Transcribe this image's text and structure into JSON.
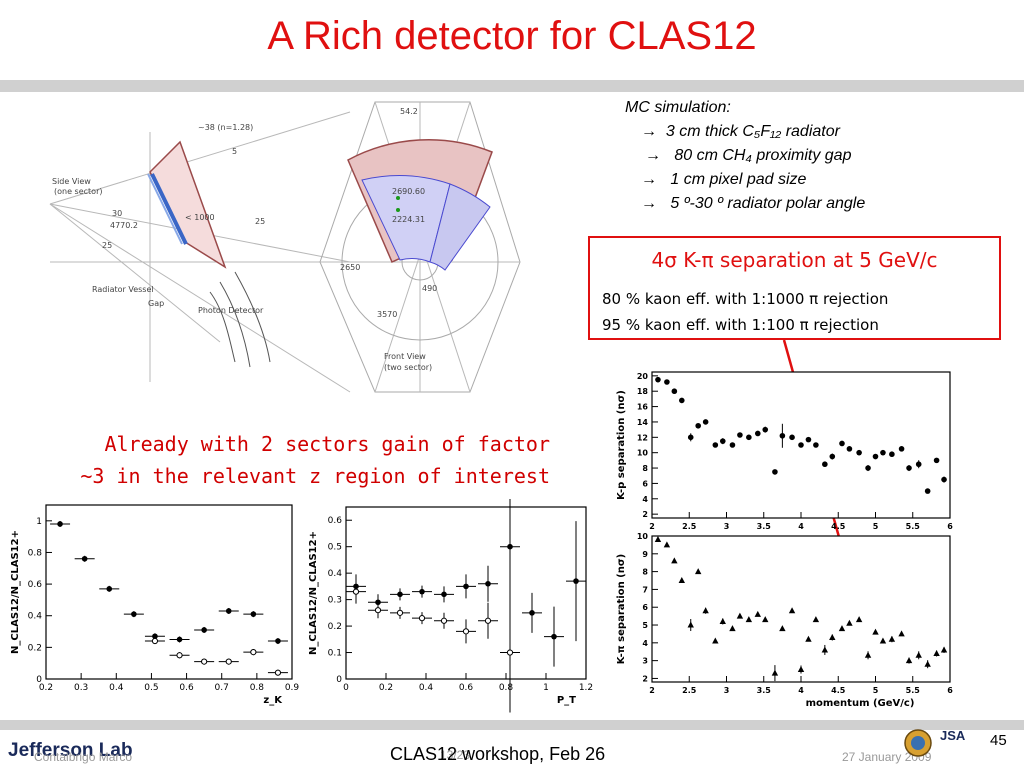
{
  "slide": {
    "title": "A Rich detector for CLAS12",
    "mc": {
      "heading": "MC simulation:",
      "arrow": "→",
      "items": [
        "3 cm thick C₅F₁₂ radiator",
        "80 cm CH₄ proximity gap",
        "1 cm pixel pad size",
        "5 º-30 º radiator polar angle"
      ]
    },
    "separation": {
      "headline": "4σ K-π separation at 5 GeV/c",
      "line1": "80 % kaon eff. with 1:1000 π rejection",
      "line2": "95 % kaon eff. with 1:100 π rejection"
    },
    "note": {
      "line1": "Already with 2 sectors gain of factor",
      "line2": "~3 in the relevant z region of interest"
    },
    "geometry_labels": {
      "side_view": "Side View",
      "one_sector": "(one sector)",
      "front_view": "Front View",
      "two_sector": "(two sector)",
      "radiator_vessel": "Radiator Vessel",
      "gap": "Gap",
      "photon_detector": "Photon Detector",
      "n_label": "~38 (n=1.28)",
      "d5": "5",
      "d30": "30",
      "d25a": "25",
      "d25b": "25",
      "d4770": "4770.2",
      "d1000": "< 1000",
      "d54": "54.2",
      "d2690": "2690.60",
      "d2224": "2224.31",
      "d2650": "2650",
      "d490": "490",
      "d3570": "3570"
    },
    "footer": {
      "lab": "Jefferson Lab",
      "author": "Contalbrigo Marco",
      "center": "CLAS12 workshop,  Feb 26",
      "center_ghost": "13/23",
      "date": "27 January 2009",
      "jsa": "JSA",
      "page": "45"
    }
  },
  "chart_data": [
    {
      "type": "scatter",
      "xlabel": "z_K",
      "ylabel": "N_CLAS12/N_CLAS12+",
      "xticks": [
        "0.2",
        "0.3",
        "0.4",
        "0.5",
        "0.6",
        "0.7",
        "0.8",
        "0.9"
      ],
      "yticks": [
        "0",
        "0.2",
        "0.4",
        "0.6",
        "0.8",
        "1"
      ],
      "xlim": [
        0.2,
        0.9
      ],
      "ylim": [
        0,
        1.1
      ],
      "series": [
        {
          "marker": "filled",
          "x": [
            0.24,
            0.31,
            0.38,
            0.45,
            0.51,
            0.58,
            0.65,
            0.72,
            0.79,
            0.86
          ],
          "y": [
            0.98,
            0.76,
            0.57,
            0.41,
            0.27,
            0.25,
            0.31,
            0.43,
            0.41,
            0.24
          ]
        },
        {
          "marker": "open",
          "x": [
            0.51,
            0.58,
            0.65,
            0.72,
            0.79,
            0.86
          ],
          "y": [
            0.24,
            0.15,
            0.11,
            0.11,
            0.17,
            0.04
          ]
        }
      ]
    },
    {
      "type": "scatter",
      "xlabel": "P_T",
      "ylabel": "N_CLAS12/N_CLAS12+",
      "xticks": [
        "0",
        "0.2",
        "0.4",
        "0.6",
        "0.8",
        "1",
        "1.2"
      ],
      "yticks": [
        "0",
        "0.1",
        "0.2",
        "0.3",
        "0.4",
        "0.5",
        "0.6"
      ],
      "xlim": [
        0,
        1.2
      ],
      "ylim": [
        0,
        0.65
      ],
      "series": [
        {
          "marker": "filled",
          "x": [
            0.05,
            0.16,
            0.27,
            0.38,
            0.49,
            0.6,
            0.71,
            0.82,
            0.93,
            1.04,
            1.15
          ],
          "y": [
            0.35,
            0.29,
            0.32,
            0.33,
            0.32,
            0.35,
            0.36,
            0.5,
            0.25,
            0.16,
            0.37
          ]
        },
        {
          "marker": "open",
          "x": [
            0.05,
            0.16,
            0.27,
            0.38,
            0.49,
            0.6,
            0.71,
            0.82
          ],
          "y": [
            0.33,
            0.26,
            0.25,
            0.23,
            0.22,
            0.18,
            0.22,
            0.1
          ]
        }
      ]
    },
    {
      "type": "scatter",
      "ylabel": "K-p separation (nσ)",
      "xticks": [
        "2",
        "2.5",
        "3",
        "3.5",
        "4",
        "4.5",
        "5",
        "5.5",
        "6"
      ],
      "yticks": [
        "2",
        "4",
        "6",
        "8",
        "10",
        "12",
        "14",
        "16",
        "18",
        "20"
      ],
      "xlim": [
        2,
        6
      ],
      "ylim": [
        1.5,
        20.5
      ],
      "series": [
        {
          "marker": "filled-circle",
          "x": [
            2.08,
            2.2,
            2.3,
            2.4,
            2.52,
            2.62,
            2.72,
            2.85,
            2.95,
            3.08,
            3.18,
            3.3,
            3.42,
            3.52,
            3.65,
            3.75,
            3.88,
            4.0,
            4.1,
            4.2,
            4.32,
            4.42,
            4.55,
            4.65,
            4.78,
            4.9,
            5.0,
            5.1,
            5.22,
            5.35,
            5.45,
            5.58,
            5.7,
            5.82,
            5.92
          ],
          "y": [
            19.5,
            19.2,
            18,
            16.8,
            12,
            13.5,
            14,
            11,
            11.5,
            11,
            12.3,
            12,
            12.5,
            13,
            7.5,
            12.2,
            12,
            11,
            11.7,
            11,
            8.5,
            9.5,
            11.2,
            10.5,
            10,
            8,
            9.5,
            10,
            9.8,
            10.5,
            8,
            8.5,
            5,
            9,
            6.5
          ]
        }
      ]
    },
    {
      "type": "scatter",
      "xlabel": "momentum (GeV/c)",
      "ylabel": "K-π separation (nσ)",
      "xticks": [
        "2",
        "2.5",
        "3",
        "3.5",
        "4",
        "4.5",
        "5",
        "5.5",
        "6"
      ],
      "yticks": [
        "2",
        "3",
        "4",
        "5",
        "6",
        "7",
        "8",
        "9",
        "10"
      ],
      "xlim": [
        2,
        6
      ],
      "ylim": [
        1.8,
        10
      ],
      "series": [
        {
          "marker": "filled-triangle",
          "x": [
            2.08,
            2.2,
            2.3,
            2.4,
            2.52,
            2.62,
            2.72,
            2.85,
            2.95,
            3.08,
            3.18,
            3.3,
            3.42,
            3.52,
            3.65,
            3.75,
            3.88,
            4.0,
            4.1,
            4.2,
            4.32,
            4.42,
            4.55,
            4.65,
            4.78,
            4.9,
            5.0,
            5.1,
            5.22,
            5.35,
            5.45,
            5.58,
            5.7,
            5.82,
            5.92
          ],
          "y": [
            9.8,
            9.5,
            8.6,
            7.5,
            5,
            8,
            5.8,
            4.1,
            5.2,
            4.8,
            5.5,
            5.3,
            5.6,
            5.3,
            2.3,
            4.8,
            5.8,
            2.5,
            4.2,
            5.3,
            3.6,
            4.3,
            4.8,
            5.1,
            5.3,
            3.3,
            4.6,
            4.1,
            4.2,
            4.5,
            3,
            3.3,
            2.8,
            3.4,
            3.6
          ]
        }
      ]
    }
  ]
}
